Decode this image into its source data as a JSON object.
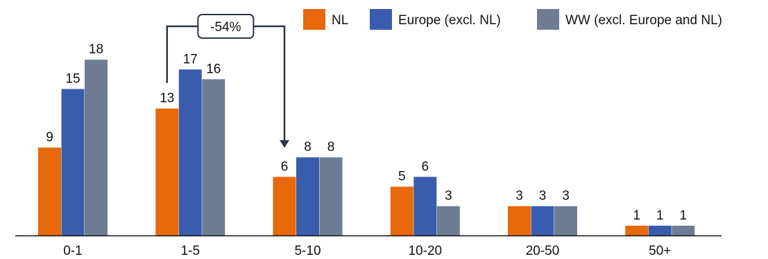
{
  "chart_data": {
    "type": "bar",
    "categories": [
      "0-1",
      "1-5",
      "5-10",
      "10-20",
      "20-50",
      "50+"
    ],
    "series": [
      {
        "name": "NL",
        "color": "#E8680C",
        "values": [
          9,
          13,
          6,
          5,
          3,
          1
        ]
      },
      {
        "name": "Europe (excl. NL)",
        "color": "#3A5CAD",
        "values": [
          15,
          17,
          8,
          6,
          3,
          1
        ]
      },
      {
        "name": "WW (excl. Europe and NL)",
        "color": "#6E7D94",
        "values": [
          18,
          16,
          8,
          3,
          3,
          1
        ]
      }
    ],
    "data_labels": true,
    "grid": false,
    "legend_position": "top-right",
    "annotation": {
      "text": "-54%",
      "from_category": "1-5",
      "from_series": "NL",
      "to_category": "5-10",
      "to_series": "NL"
    },
    "title": "",
    "xlabel": "",
    "ylabel": ""
  }
}
